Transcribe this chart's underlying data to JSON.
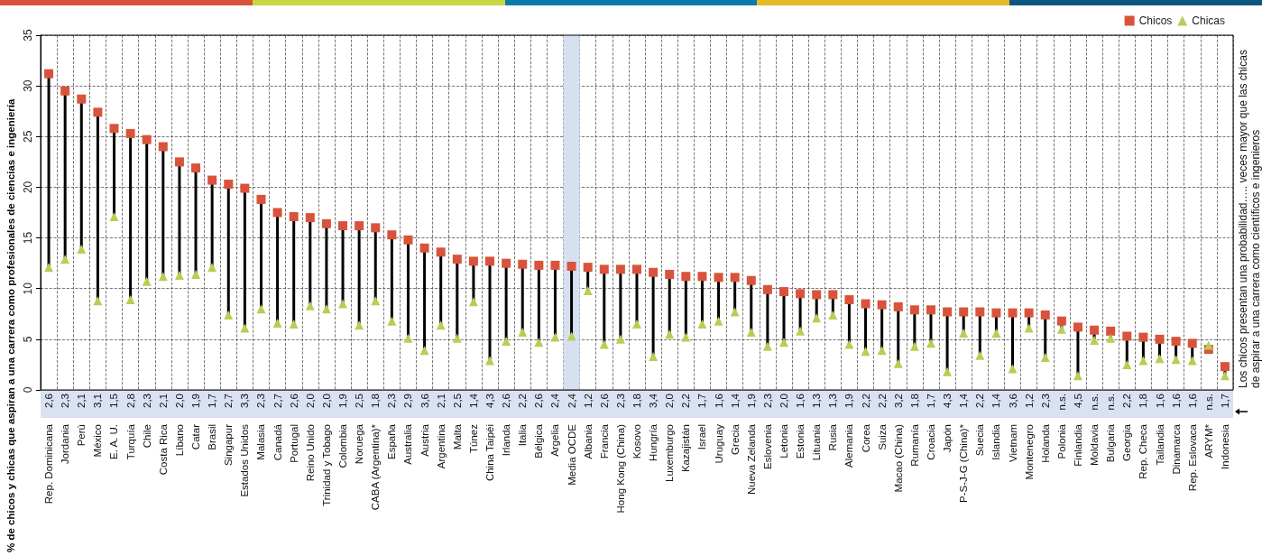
{
  "chart_data": {
    "type": "scatter",
    "ylabel": "% de chicos y chicas que aspiran a una carrera como profesionales de ciencias e ingeniería",
    "categories": [
      "Rep. Dominicana",
      "Jordania",
      "Perú",
      "México",
      "E. A. U.",
      "Turquía",
      "Chile",
      "Costa Rica",
      "Líbano",
      "Catar",
      "Brasil",
      "Singapur",
      "Estados Unidos",
      "Malasia",
      "Canadá",
      "Portugal",
      "Reino Unido",
      "Trinidad y Tobago",
      "Colombia",
      "Noruega",
      "CABA (Argentina)*",
      "España",
      "Australia",
      "Austria",
      "Argentina",
      "Malta",
      "Túnez",
      "China Taipéi",
      "Irlanda",
      "Italia",
      "Bélgica",
      "Argelia",
      "Media OCDE",
      "Albania",
      "Francia",
      "Hong Kong (China)",
      "Kosovo",
      "Hungría",
      "Luxemburgo",
      "Kazajistán",
      "Israel",
      "Uruguay",
      "Grecia",
      "Nueva Zelanda",
      "Eslovenia",
      "Letonia",
      "Estonia",
      "Lituania",
      "Rusia",
      "Alemania",
      "Corea",
      "Suiza",
      "Macao (China)",
      "Rumanía",
      "Croacia",
      "Japón",
      "P-S-J-G (China)*",
      "Suecia",
      "Islandia",
      "Vietnam",
      "Montenegro",
      "Holanda",
      "Polonia",
      "Finlandia",
      "Moldavia",
      "Bulgaria",
      "Georgia",
      "Rep. Checa",
      "Tailandia",
      "Dinamarca",
      "Rep. Eslovaca",
      "ARYM*",
      "Indonesia"
    ],
    "series": [
      {
        "name": "Chicos",
        "color": "#d9533c",
        "marker": "square",
        "values": [
          31.2,
          29.5,
          28.7,
          27.4,
          25.8,
          25.3,
          24.7,
          24.0,
          22.5,
          21.9,
          20.7,
          20.3,
          19.9,
          18.8,
          17.5,
          17.1,
          17.0,
          16.4,
          16.2,
          16.2,
          16.0,
          15.3,
          14.8,
          14.0,
          13.6,
          12.9,
          12.7,
          12.7,
          12.5,
          12.4,
          12.3,
          12.3,
          12.2,
          12.1,
          11.9,
          11.9,
          11.9,
          11.6,
          11.4,
          11.2,
          11.2,
          11.1,
          11.1,
          10.8,
          9.9,
          9.7,
          9.5,
          9.4,
          9.4,
          8.9,
          8.5,
          8.4,
          8.2,
          7.9,
          7.9,
          7.7,
          7.7,
          7.7,
          7.6,
          7.6,
          7.6,
          7.4,
          6.8,
          6.2,
          5.9,
          5.8,
          5.3,
          5.2,
          5.0,
          4.8,
          4.6,
          4.0,
          2.3
        ]
      },
      {
        "name": "Chicas",
        "color": "#b5cf54",
        "marker": "triangle",
        "values": [
          12.1,
          12.9,
          13.9,
          8.8,
          17.1,
          8.9,
          10.7,
          11.2,
          11.3,
          11.4,
          12.1,
          7.4,
          6.1,
          8.0,
          6.6,
          6.5,
          8.3,
          8.0,
          8.5,
          6.4,
          8.8,
          6.8,
          5.1,
          3.9,
          6.4,
          5.1,
          8.7,
          2.9,
          4.8,
          5.7,
          4.7,
          5.2,
          5.3,
          9.8,
          4.5,
          5.0,
          6.5,
          3.3,
          5.5,
          5.2,
          6.5,
          6.8,
          7.7,
          5.7,
          4.3,
          4.7,
          5.8,
          7.1,
          7.4,
          4.5,
          3.8,
          3.9,
          2.6,
          4.3,
          4.6,
          1.8,
          5.6,
          3.4,
          5.6,
          2.1,
          6.1,
          3.2,
          6.0,
          1.4,
          4.9,
          5.1,
          2.5,
          2.9,
          3.1,
          3.0,
          2.9,
          4.4,
          1.4
        ]
      }
    ],
    "ylim": [
      0,
      35
    ],
    "yticks": [
      0,
      5,
      10,
      15,
      20,
      25,
      30,
      35
    ],
    "grid": true,
    "legend": "top right",
    "bands": [
      {
        "axis": "x",
        "from": "Media OCDE",
        "to": "Media OCDE",
        "color": "#d6e0f0"
      }
    ],
    "annotations": [
      "Los chicos presentan una probabilidad….. veces mayor que las chicas de aspirar a una carrera como científicos e ingenieros",
      "2,6",
      "2,3",
      "2,1",
      "3,1",
      "1,5",
      "2,8",
      "2,3",
      "2,1",
      "2,0",
      "1,9",
      "1,7",
      "2,7",
      "3,3",
      "2,3",
      "2,7",
      "2,6",
      "2,0",
      "2,0",
      "1,9",
      "2,5",
      "1,8",
      "2,3",
      "2,9",
      "3,6",
      "2,1",
      "2,5",
      "1,4",
      "4,3",
      "2,6",
      "2,2",
      "2,6",
      "2,4",
      "2,4",
      "1,2",
      "2,6",
      "2,3",
      "1,8",
      "3,4",
      "2,0",
      "2,2",
      "1,7",
      "1,6",
      "1,4",
      "1,9",
      "2,3",
      "2,0",
      "1,6",
      "1,3",
      "1,3",
      "1,9",
      "2,2",
      "2,2",
      "3,2",
      "1,8",
      "1,7",
      "4,3",
      "1,4",
      "2,2",
      "1,4",
      "3,6",
      "1,2",
      "2,3",
      "n.s.",
      "4,5",
      "n.s.",
      "n.s.",
      "2,2",
      "1,8",
      "1,6",
      "1,6",
      "1,6",
      "n.s.",
      "1,7"
    ]
  }
}
